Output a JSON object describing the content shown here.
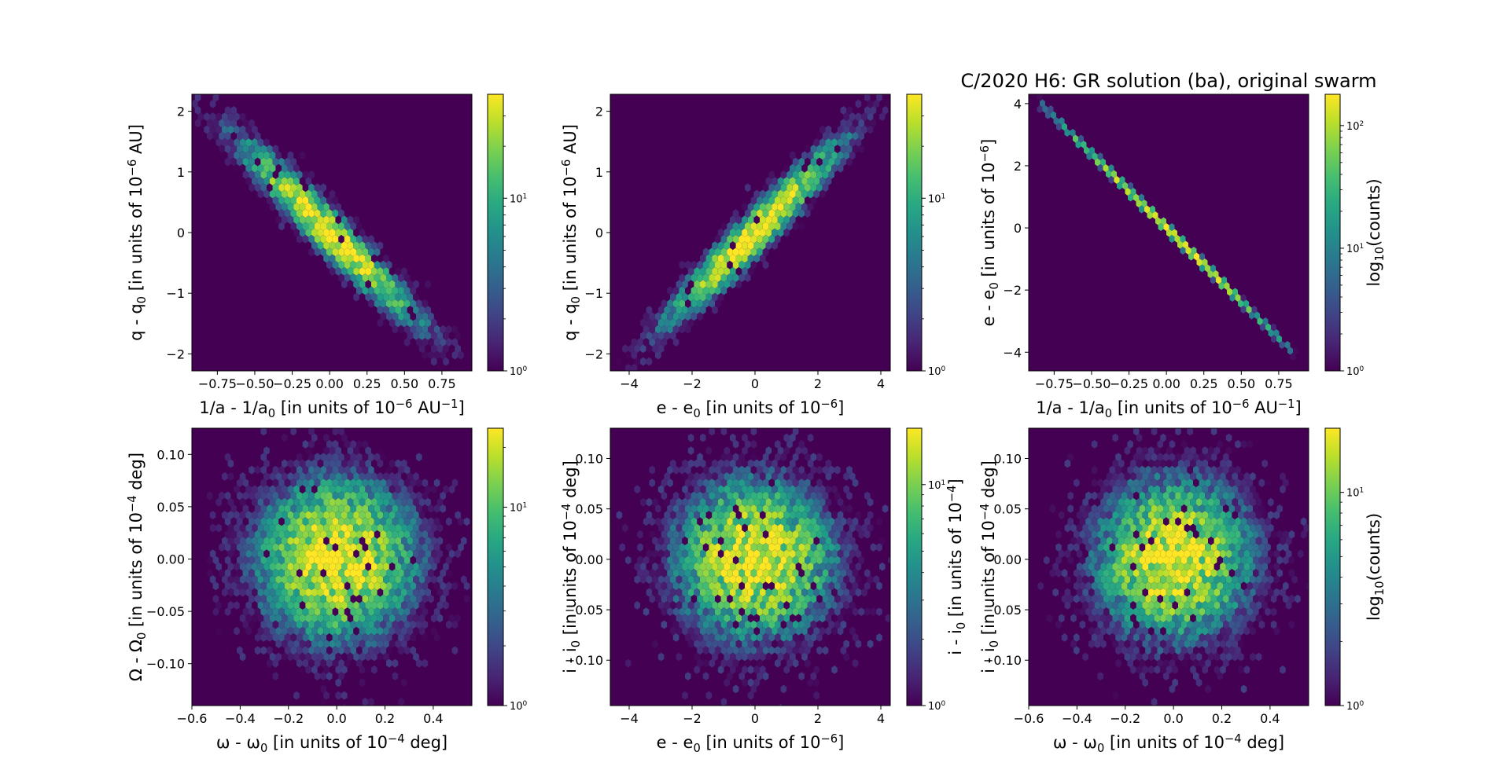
{
  "figure": {
    "suptitle": "C/2020 H6: GR solution (ba), original swarm"
  },
  "chart_data": [
    {
      "type": "heatmap",
      "subtype": "hexbin",
      "xlabel_parts": [
        "1/a - 1/a",
        "0",
        " [in units of 10",
        "−6",
        " AU",
        "−1",
        "]"
      ],
      "ylabel_parts": [
        "q - q",
        "0",
        " [in units of 10",
        "−6",
        " AU]"
      ],
      "xlim": [
        -0.92,
        0.95
      ],
      "ylim": [
        -2.28,
        2.28
      ],
      "xticks": [
        -0.75,
        -0.5,
        -0.25,
        0.0,
        0.25,
        0.5,
        0.75
      ],
      "xtick_labels": [
        "−0.75",
        "−0.50",
        "−0.25",
        "0.00",
        "0.25",
        "0.50",
        "0.75"
      ],
      "yticks": [
        -2,
        -1,
        0,
        1,
        2
      ],
      "ytick_labels": [
        "−2",
        "−1",
        "0",
        "1",
        "2"
      ],
      "distribution": {
        "kind": "correlated",
        "x_sd": 0.3,
        "y_sd": 0.75,
        "correlation": -0.96,
        "peak_counts": 40
      },
      "colorbar": {
        "scale": "log",
        "range": [
          1,
          40
        ],
        "ticks": [
          1,
          10
        ],
        "tick_labels": [
          "10^0",
          "10^1"
        ],
        "label": ""
      }
    },
    {
      "type": "heatmap",
      "subtype": "hexbin",
      "xlabel_parts": [
        "e - e",
        "0",
        " [in units of 10",
        "−6",
        "]"
      ],
      "ylabel_parts": [
        "q - q",
        "0",
        " [in units of 10",
        "−6",
        " AU]"
      ],
      "xlim": [
        -4.6,
        4.3
      ],
      "ylim": [
        -2.28,
        2.28
      ],
      "xticks": [
        -4,
        -2,
        0,
        2,
        4
      ],
      "xtick_labels": [
        "−4",
        "−2",
        "0",
        "2",
        "4"
      ],
      "yticks": [
        -2,
        -1,
        0,
        1,
        2
      ],
      "ytick_labels": [
        "−2",
        "−1",
        "0",
        "1",
        "2"
      ],
      "distribution": {
        "kind": "correlated",
        "x_sd": 1.4,
        "y_sd": 0.75,
        "correlation": 0.96,
        "peak_counts": 40
      },
      "colorbar": {
        "scale": "log",
        "range": [
          1,
          40
        ],
        "ticks": [
          1,
          10
        ],
        "tick_labels": [
          "10^0",
          "10^1"
        ],
        "label": ""
      }
    },
    {
      "type": "heatmap",
      "subtype": "hexbin",
      "xlabel_parts": [
        "1/a - 1/a",
        "0",
        " [in units of 10",
        "−6",
        " AU",
        "−1",
        "]"
      ],
      "ylabel_parts": [
        "e - e",
        "0",
        " [in units of 10",
        "−6",
        "]"
      ],
      "xlim": [
        -0.92,
        0.95
      ],
      "ylim": [
        -4.6,
        4.3
      ],
      "xticks": [
        -0.75,
        -0.5,
        -0.25,
        0.0,
        0.25,
        0.5,
        0.75
      ],
      "xtick_labels": [
        "−0.75",
        "−0.50",
        "−0.25",
        "0.00",
        "0.25",
        "0.50",
        "0.75"
      ],
      "yticks": [
        -4,
        -2,
        0,
        2,
        4
      ],
      "ytick_labels": [
        "−4",
        "−2",
        "0",
        "2",
        "4"
      ],
      "distribution": {
        "kind": "line",
        "slope": -4.75,
        "x_range": [
          -0.85,
          0.88
        ],
        "peak_counts": 180
      },
      "colorbar": {
        "scale": "log",
        "range": [
          1,
          180
        ],
        "ticks": [
          1,
          10,
          100
        ],
        "tick_labels": [
          "10^0",
          "10^1",
          "10^2"
        ],
        "label_parts": [
          "log",
          "10",
          "(counts)"
        ]
      }
    },
    {
      "type": "heatmap",
      "subtype": "hexbin",
      "xlabel_parts": [
        "ω - ω",
        "0",
        " [in units of 10",
        "−4",
        " deg]"
      ],
      "ylabel_parts": [
        "Ω - Ω",
        "0",
        " [in units of 10",
        "−4",
        " deg]"
      ],
      "xlim": [
        -0.6,
        0.56
      ],
      "ylim": [
        -0.14,
        0.125
      ],
      "xticks": [
        -0.6,
        -0.4,
        -0.2,
        0.0,
        0.2,
        0.4
      ],
      "xtick_labels": [
        "−0.6",
        "−0.4",
        "−0.2",
        "0.0",
        "0.2",
        "0.4"
      ],
      "yticks": [
        -0.1,
        -0.05,
        0.0,
        0.05,
        0.1
      ],
      "ytick_labels": [
        "−0.10",
        "−0.05",
        "0.00",
        "0.05",
        "0.10"
      ],
      "distribution": {
        "kind": "gaussian",
        "x_sd": 0.17,
        "y_sd": 0.04,
        "correlation": 0,
        "peak_counts": 25
      },
      "colorbar": {
        "scale": "log",
        "range": [
          1,
          25
        ],
        "ticks": [
          1,
          10
        ],
        "tick_labels": [
          "10^0",
          "10^1"
        ],
        "label": ""
      }
    },
    {
      "type": "heatmap",
      "subtype": "hexbin",
      "xlabel_parts": [
        "e - e",
        "0",
        " [in units of 10",
        "−6",
        "]"
      ],
      "ylabel_parts": [
        "i - i",
        "0",
        " [in units of 10",
        "−4",
        " deg]"
      ],
      "xlim": [
        -4.6,
        4.3
      ],
      "ylim": [
        -0.145,
        0.13
      ],
      "xticks": [
        -4,
        -2,
        0,
        2,
        4
      ],
      "xtick_labels": [
        "−4",
        "−2",
        "0",
        "2",
        "4"
      ],
      "yticks": [
        -0.1,
        -0.05,
        0.0,
        0.05,
        0.1
      ],
      "ytick_labels": [
        "−0.10",
        "−0.05",
        "0.00",
        "0.05",
        "0.10"
      ],
      "distribution": {
        "kind": "gaussian",
        "x_sd": 1.35,
        "y_sd": 0.042,
        "correlation": 0,
        "peak_counts": 18
      },
      "colorbar": {
        "scale": "log",
        "range": [
          1,
          18
        ],
        "ticks": [
          1,
          10
        ],
        "tick_labels": [
          "10^0",
          "10^1"
        ],
        "label_parts": [
          "i - i",
          "0",
          " [in units of 10",
          "−4",
          "]"
        ]
      }
    },
    {
      "type": "heatmap",
      "subtype": "hexbin",
      "xlabel_parts": [
        "ω - ω",
        "0",
        " [in units of 10",
        "−4",
        " deg]"
      ],
      "ylabel_parts": [
        "i - i",
        "0",
        " [in units of 10",
        "−4",
        " deg]"
      ],
      "xlim": [
        -0.6,
        0.56
      ],
      "ylim": [
        -0.145,
        0.13
      ],
      "xticks": [
        -0.6,
        -0.4,
        -0.2,
        0.0,
        0.2,
        0.4
      ],
      "xtick_labels": [
        "−0.6",
        "−0.4",
        "−0.2",
        "0.0",
        "0.2",
        "0.4"
      ],
      "yticks": [
        -0.1,
        -0.05,
        0.0,
        0.05,
        0.1
      ],
      "ytick_labels": [
        "−0.10",
        "−0.05",
        "0.00",
        "0.05",
        "0.10"
      ],
      "distribution": {
        "kind": "gaussian",
        "x_sd": 0.17,
        "y_sd": 0.042,
        "correlation": 0,
        "peak_counts": 20
      },
      "colorbar": {
        "scale": "log",
        "range": [
          1,
          20
        ],
        "ticks": [
          1,
          10
        ],
        "tick_labels": [
          "10^0",
          "10^1"
        ],
        "label_parts": [
          "log",
          "10",
          "(counts)"
        ]
      }
    }
  ]
}
